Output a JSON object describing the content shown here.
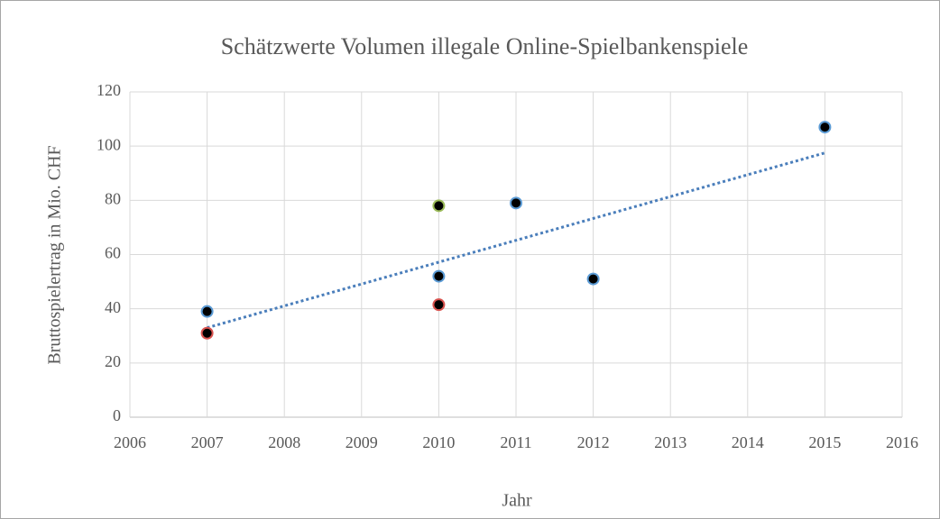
{
  "chart_data": {
    "type": "scatter",
    "title": "Schätzwerte Volumen illegale Online-Spielbankenspiele",
    "xlabel": "Jahr",
    "ylabel": "Bruttospielertrag in Mio. CHF",
    "series": [
      {
        "color": "#000000",
        "edge_colors": [
          "#5b9bd5",
          "#d9534f",
          "#9bbb59",
          "#5b9bd5",
          "#d9534f",
          "#5b9bd5",
          "#5b9bd5",
          "#5b9bd5"
        ],
        "x": [
          2007,
          2007,
          2010,
          2010,
          2010,
          2011,
          2012,
          2015
        ],
        "values": [
          39,
          31,
          78,
          52,
          41.5,
          79,
          51,
          107
        ]
      }
    ],
    "trendline": {
      "color": "#4a7ebb",
      "x": [
        2007,
        2015
      ],
      "values": [
        33,
        97.5
      ]
    },
    "xlim": [
      2006,
      2016
    ],
    "xticks": [
      2006,
      2007,
      2008,
      2009,
      2010,
      2011,
      2012,
      2013,
      2014,
      2015,
      2016
    ],
    "ylim": [
      0,
      120
    ],
    "yticks": [
      0,
      20,
      40,
      60,
      80,
      100,
      120
    ],
    "grid": true
  }
}
